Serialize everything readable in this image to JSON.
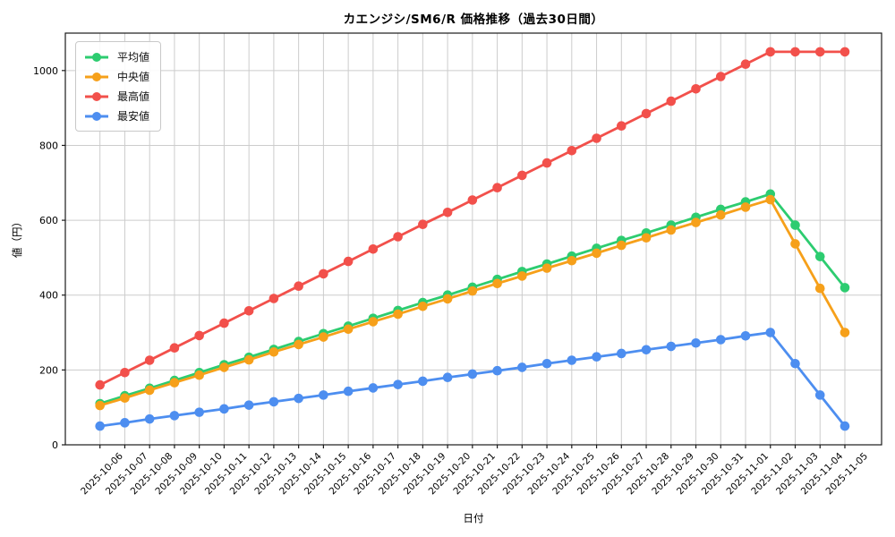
{
  "chart_data": {
    "type": "line",
    "title": "カエンジシ/SM6/R 価格推移（過去30日間）",
    "xlabel": "日付",
    "ylabel": "値（円）",
    "ylim": [
      0,
      1100
    ],
    "yticks": [
      0,
      200,
      400,
      600,
      800,
      1000
    ],
    "grid": true,
    "legend_position": "upper-left",
    "x": [
      "2025-10-06",
      "2025-10-07",
      "2025-10-08",
      "2025-10-09",
      "2025-10-10",
      "2025-10-11",
      "2025-10-12",
      "2025-10-13",
      "2025-10-14",
      "2025-10-15",
      "2025-10-16",
      "2025-10-17",
      "2025-10-18",
      "2025-10-19",
      "2025-10-20",
      "2025-10-21",
      "2025-10-22",
      "2025-10-23",
      "2025-10-24",
      "2025-10-25",
      "2025-10-26",
      "2025-10-27",
      "2025-10-28",
      "2025-10-29",
      "2025-10-30",
      "2025-10-31",
      "2025-11-01",
      "2025-11-02",
      "2025-11-03",
      "2025-11-04",
      "2025-11-05"
    ],
    "series": [
      {
        "name": "平均値",
        "color": "#2dcc70",
        "values": [
          110,
          131,
          151,
          172,
          193,
          214,
          234,
          255,
          276,
          297,
          317,
          338,
          359,
          380,
          400,
          421,
          442,
          463,
          483,
          504,
          525,
          546,
          566,
          587,
          608,
          629,
          649,
          670,
          587,
          503,
          420
        ]
      },
      {
        "name": "中央値",
        "color": "#f6a01a",
        "values": [
          105,
          125,
          146,
          166,
          186,
          207,
          227,
          248,
          268,
          288,
          309,
          329,
          349,
          370,
          390,
          411,
          431,
          451,
          472,
          492,
          512,
          533,
          553,
          574,
          594,
          614,
          635,
          655,
          537,
          418,
          300
        ]
      },
      {
        "name": "最高値",
        "color": "#f2504b",
        "values": [
          160,
          193,
          226,
          259,
          292,
          325,
          358,
          391,
          424,
          457,
          490,
          523,
          556,
          589,
          621,
          654,
          687,
          720,
          753,
          786,
          819,
          852,
          885,
          918,
          951,
          984,
          1017,
          1050,
          1050,
          1050,
          1050
        ]
      },
      {
        "name": "最安値",
        "color": "#4d8ef0",
        "values": [
          50,
          59,
          69,
          78,
          87,
          96,
          106,
          115,
          124,
          133,
          143,
          152,
          161,
          170,
          180,
          189,
          198,
          207,
          217,
          226,
          235,
          244,
          254,
          263,
          272,
          281,
          291,
          300,
          217,
          133,
          50
        ]
      }
    ]
  }
}
